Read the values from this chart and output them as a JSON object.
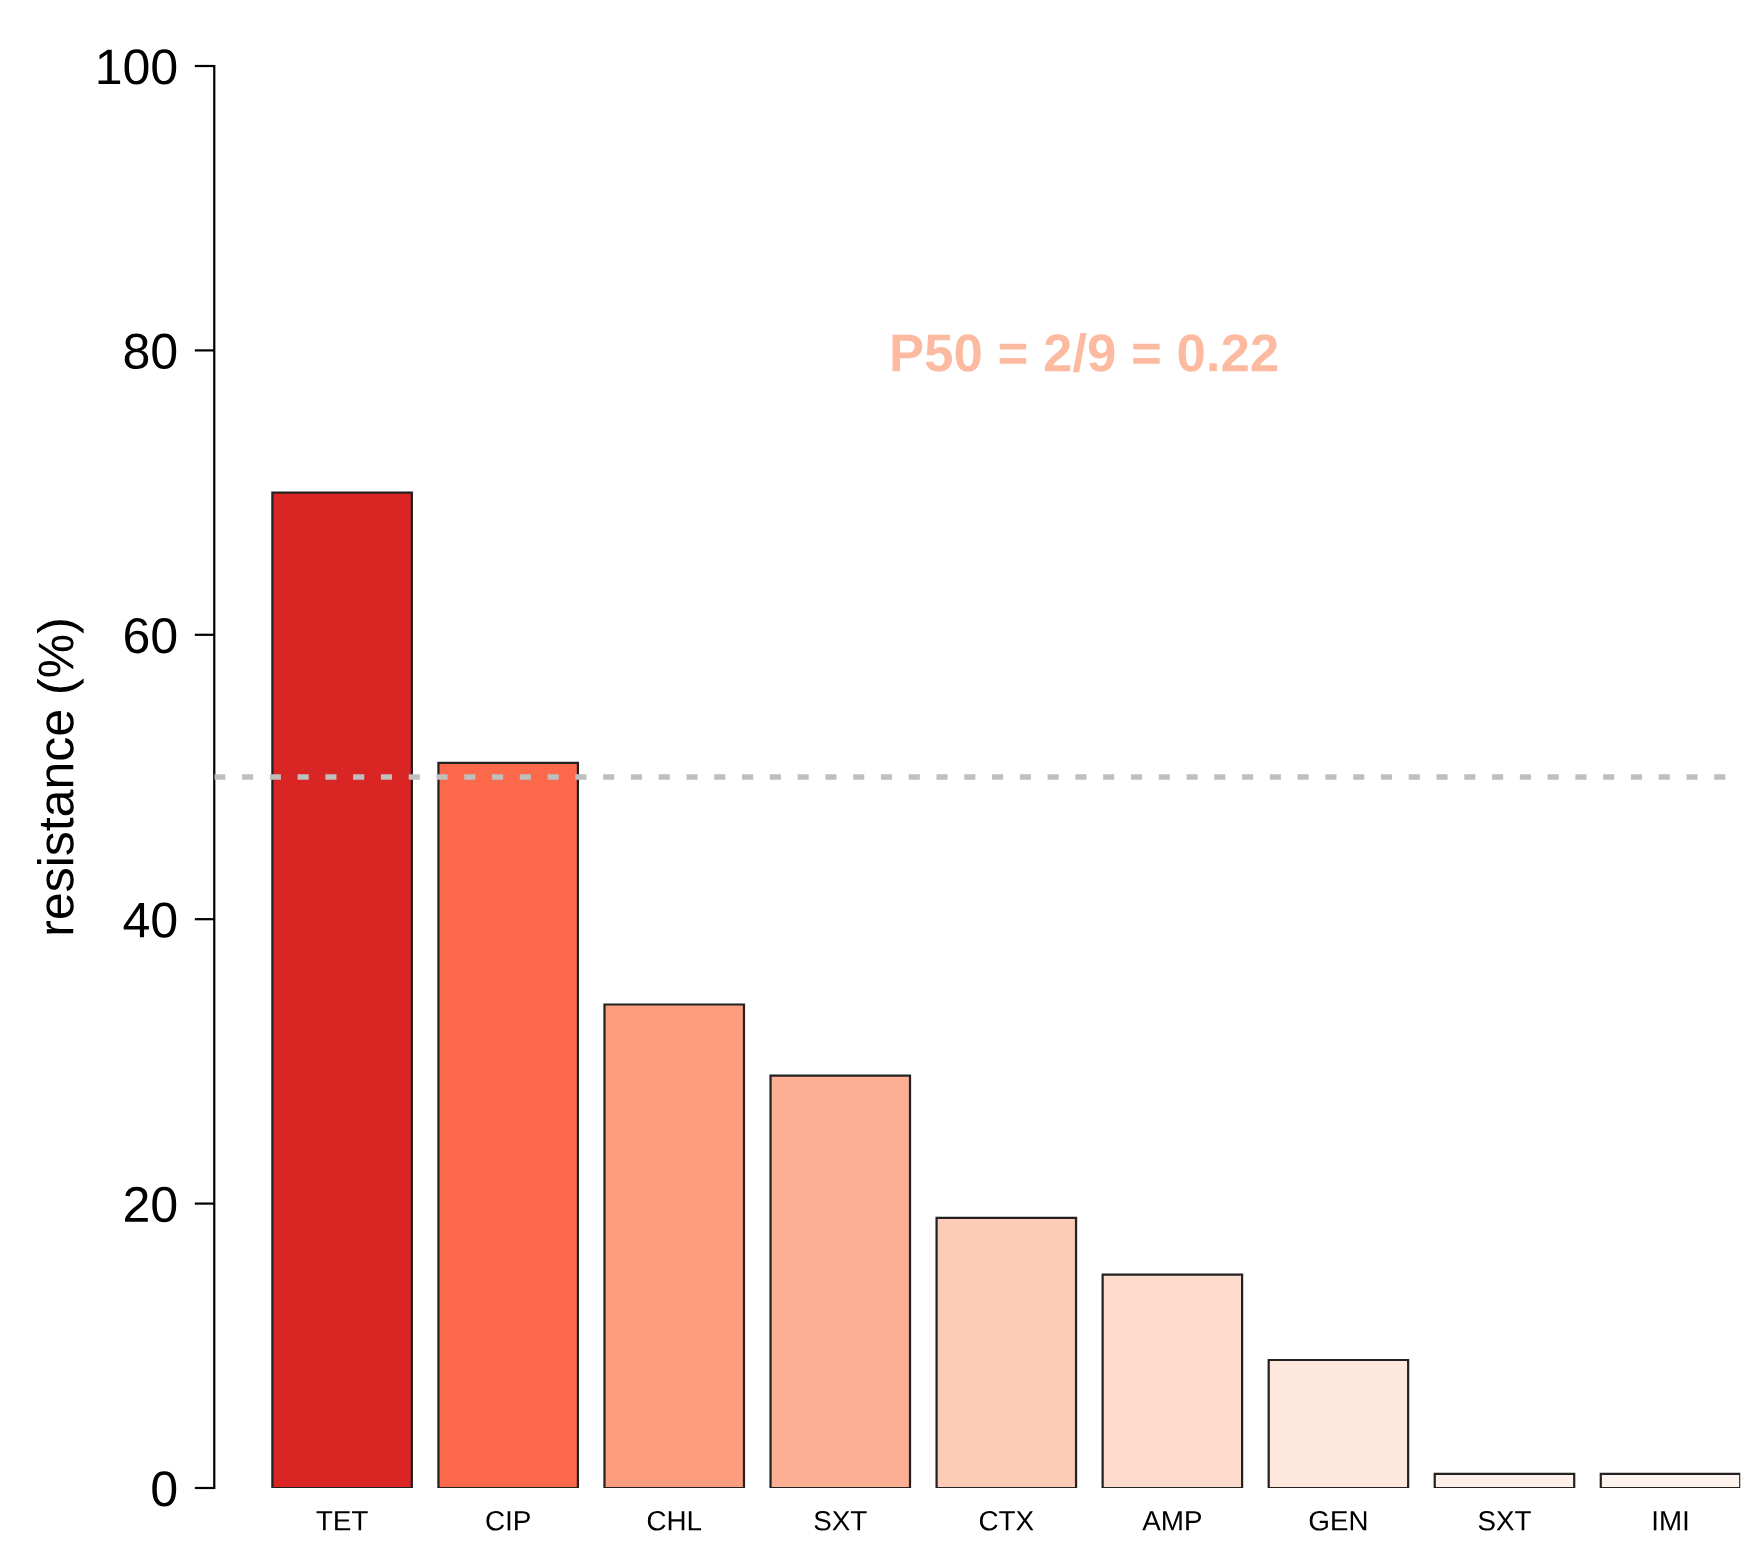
{
  "chart_data": {
    "type": "bar",
    "ylabel": "resistance (%)",
    "categories": [
      "TET",
      "CIP",
      "CHL",
      "SXT",
      "CTX",
      "AMP",
      "GEN",
      "SXT",
      "IMI"
    ],
    "values": [
      70,
      51,
      34,
      29,
      19,
      15,
      9,
      1,
      1
    ],
    "colors": [
      "#d92523",
      "#fb694a",
      "#fc9d7f",
      "#fcaf93",
      "#fcccb6",
      "#fcdbcc",
      "#fee8de",
      "#fff0ea",
      "#fff3ee"
    ],
    "ylim": [
      0,
      100
    ],
    "yticks": [
      0,
      20,
      40,
      60,
      80,
      100
    ],
    "ref_lines": [
      {
        "axis": "y",
        "value": 50,
        "color": "#bfbfbf",
        "line_style": "dotted"
      }
    ],
    "annotations": [
      "P50 = 2/9 = 0.22"
    ],
    "grid": false
  }
}
